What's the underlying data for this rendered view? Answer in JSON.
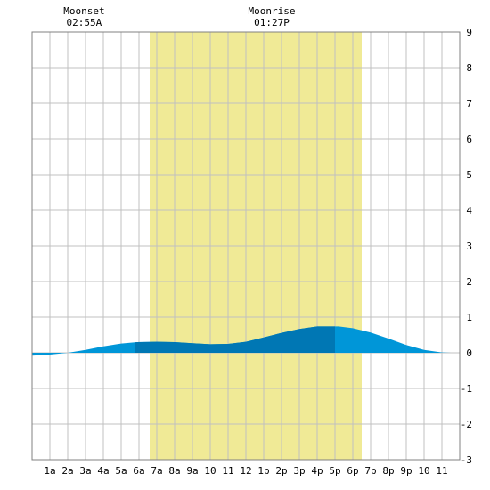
{
  "chart_data": {
    "type": "area",
    "title": "",
    "xlabel": "",
    "ylabel": "",
    "x_ticks": [
      "1a",
      "2a",
      "3a",
      "4a",
      "5a",
      "6a",
      "7a",
      "8a",
      "9a",
      "10",
      "11",
      "12",
      "1p",
      "2p",
      "3p",
      "4p",
      "5p",
      "6p",
      "7p",
      "8p",
      "9p",
      "10",
      "11"
    ],
    "y_ticks": [
      "9",
      "8",
      "7",
      "6",
      "5",
      "4",
      "3",
      "2",
      "1",
      "0",
      "-1",
      "-2",
      "-3"
    ],
    "xlim": [
      0,
      24
    ],
    "ylim": [
      -3,
      9
    ],
    "grid": true,
    "daylight": {
      "start": 6.6,
      "end": 18.5
    },
    "moon_events": [
      {
        "name": "Moonset",
        "time": "02:55A",
        "hour": 2.92
      },
      {
        "name": "Moonrise",
        "time": "01:27P",
        "hour": 13.45
      }
    ],
    "highlight_segments": [
      {
        "start": 5.8,
        "end": 10.6
      },
      {
        "start": 10.6,
        "end": 17.0
      }
    ],
    "series": [
      {
        "x": [
          0,
          1,
          2,
          3,
          4,
          5,
          5.9,
          7,
          8,
          9,
          10,
          11,
          12,
          13,
          14,
          15,
          16,
          17,
          17.2,
          18,
          19,
          20,
          21,
          22,
          23,
          23.5
        ],
        "y": [
          -0.08,
          -0.05,
          0.0,
          0.08,
          0.18,
          0.26,
          0.3,
          0.31,
          0.3,
          0.27,
          0.24,
          0.25,
          0.31,
          0.43,
          0.56,
          0.67,
          0.74,
          0.74,
          0.74,
          0.69,
          0.57,
          0.4,
          0.22,
          0.08,
          0.01,
          0.0
        ]
      }
    ],
    "colors": {
      "daylight": "#f0ea96",
      "tide": "#0096d8",
      "tide_dark": "#0077b4",
      "grid": "#c0c0c0",
      "border": "#808080"
    }
  }
}
